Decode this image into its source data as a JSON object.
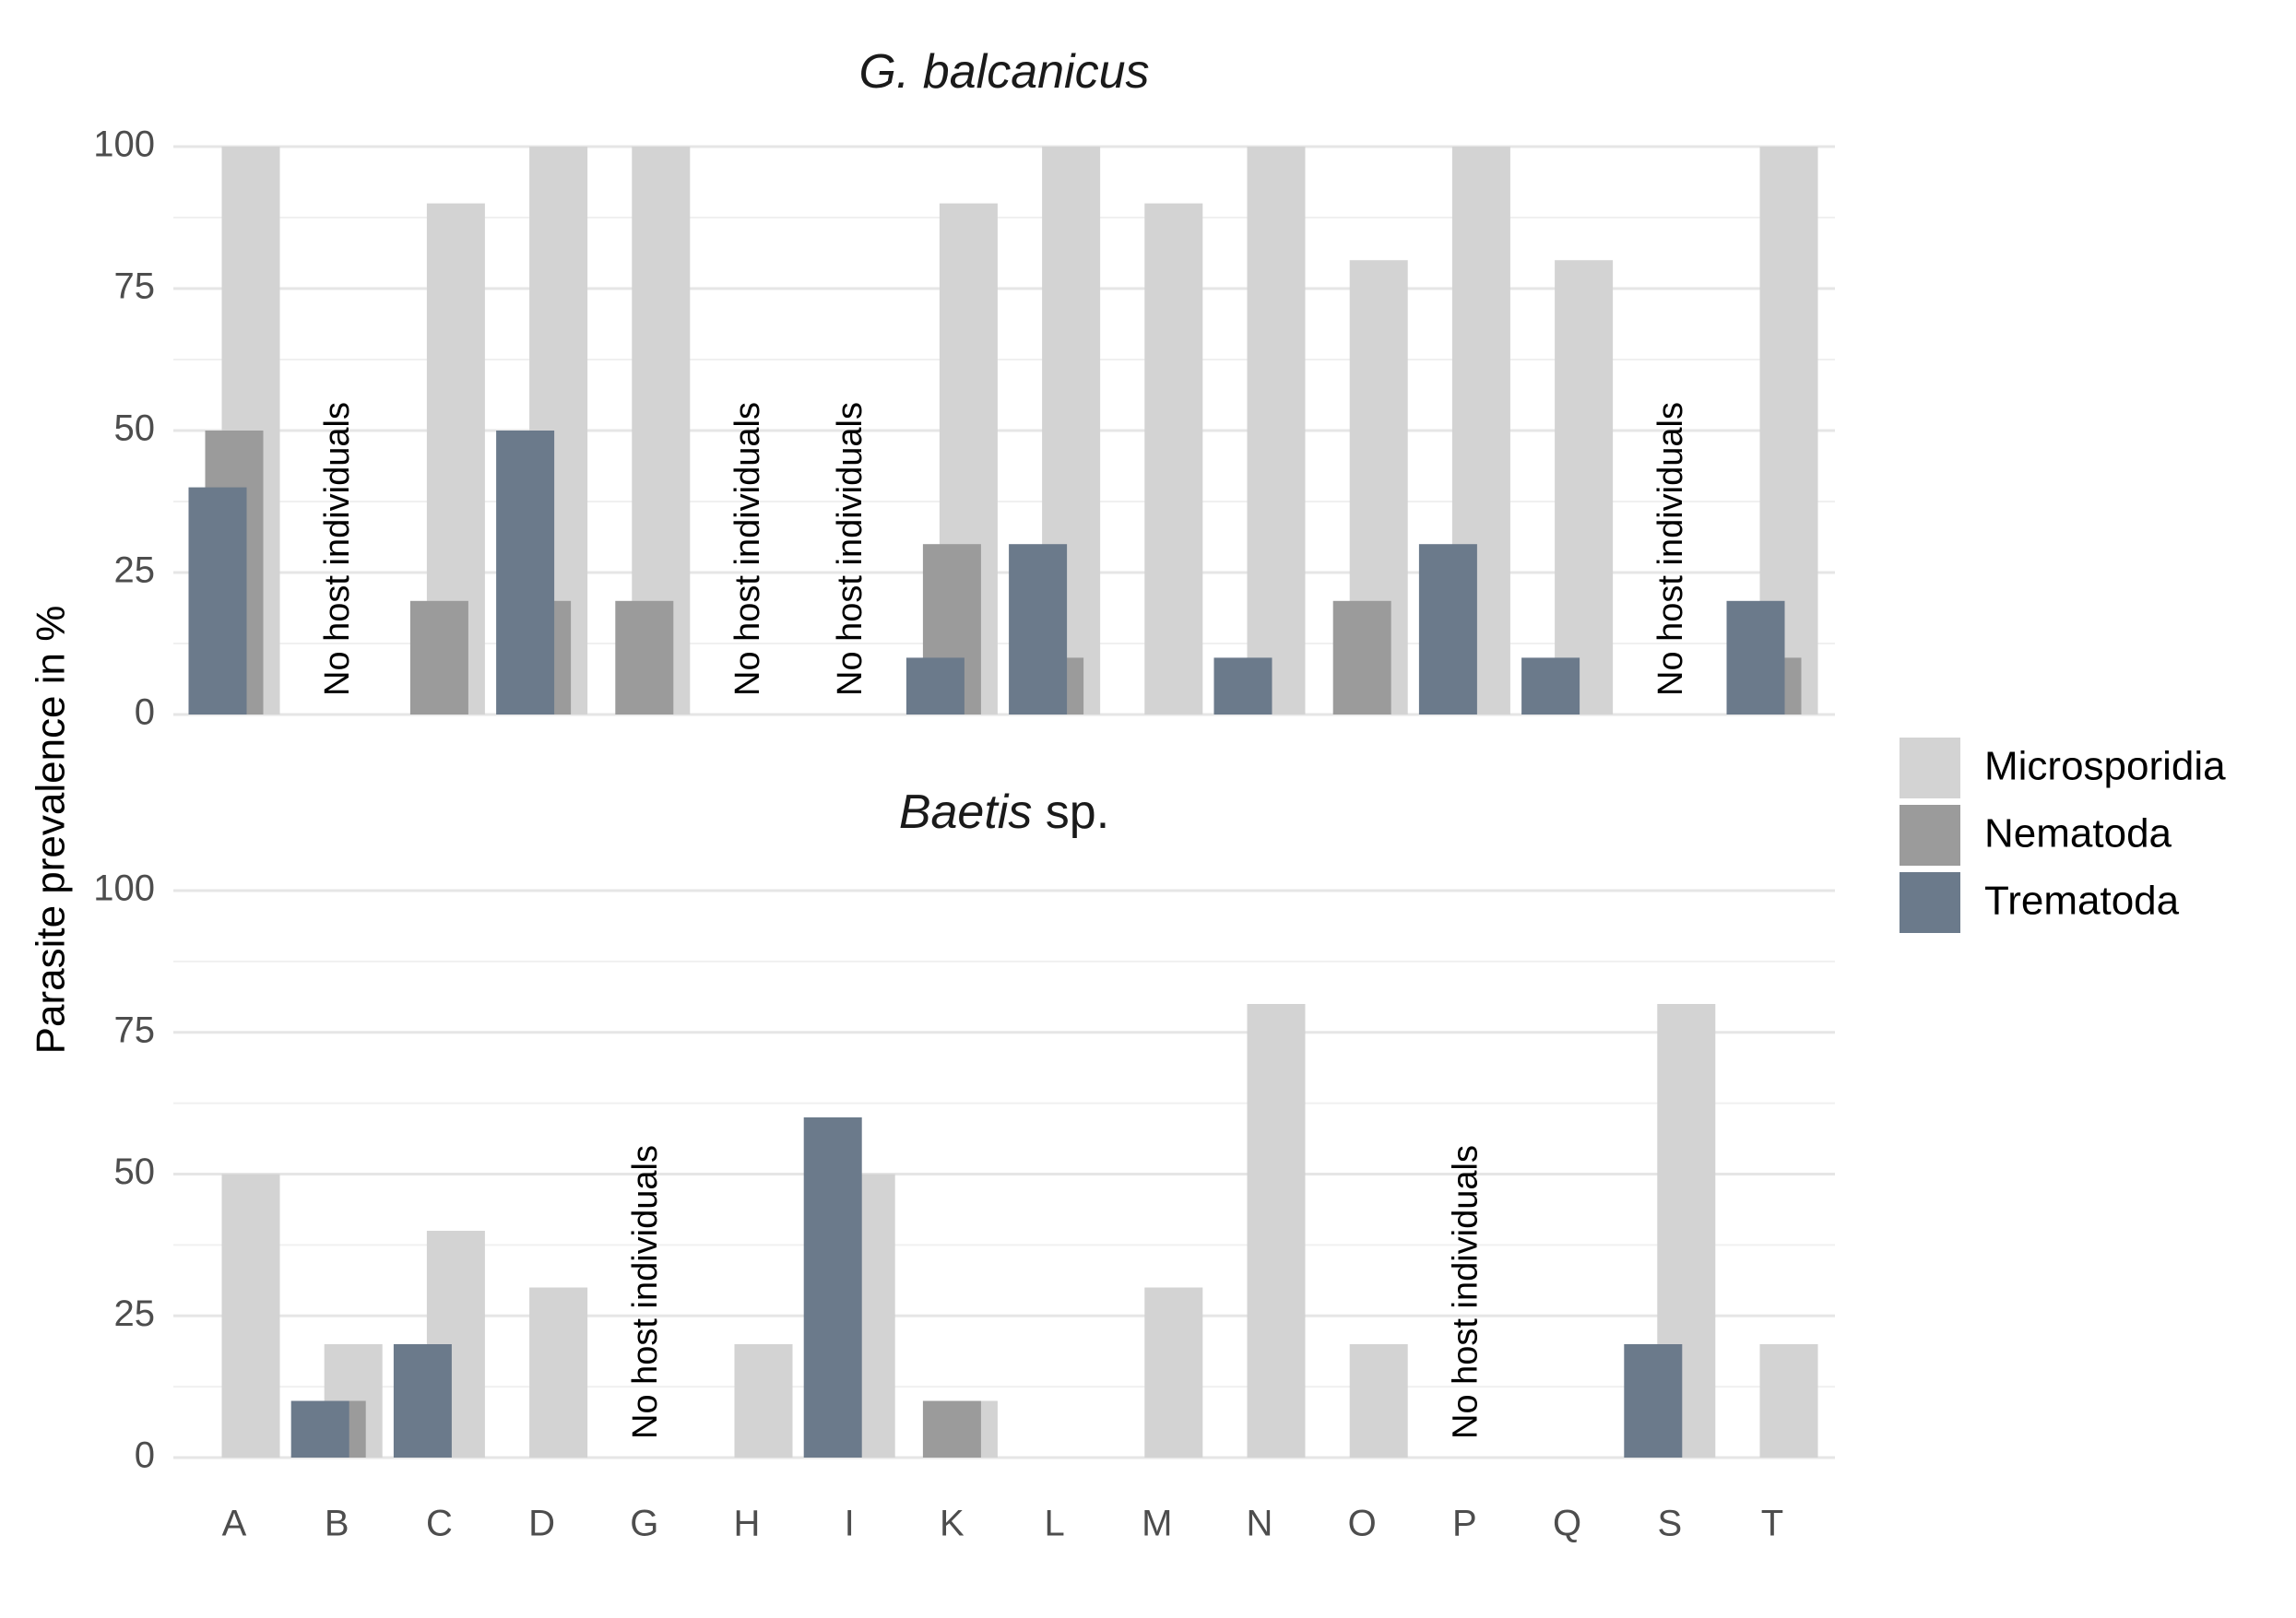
{
  "chart_data": {
    "type": "bar",
    "ylabel": "Parasite prevalence in %",
    "ylim": [
      0,
      100
    ],
    "yticks": [
      "0",
      "25",
      "50",
      "75",
      "100"
    ],
    "grid": true,
    "legend_position": "right",
    "categories": [
      "A",
      "B",
      "C",
      "D",
      "G",
      "H",
      "I",
      "K",
      "L",
      "M",
      "N",
      "O",
      "P",
      "Q",
      "S",
      "T"
    ],
    "colors": {
      "Microsporidia": "#d3d3d3",
      "Nematoda": "#9b9b9b",
      "Trematoda": "#6b7a8b"
    },
    "legend": [
      "Microsporidia",
      "Nematoda",
      "Trematoda"
    ],
    "no_host_text": "No host individuals",
    "panels": [
      {
        "title_italic": "G. balcanicus",
        "title_rest": "",
        "no_host": [
          "B",
          "H",
          "I",
          "S"
        ],
        "series": [
          {
            "name": "Microsporidia",
            "values": [
              100,
              null,
              90,
              100,
              100,
              null,
              null,
              90,
              100,
              90,
              100,
              80,
              100,
              80,
              null,
              100
            ]
          },
          {
            "name": "Nematoda",
            "values": [
              50,
              null,
              20,
              20,
              20,
              null,
              null,
              30,
              10,
              0,
              0,
              20,
              0,
              0,
              null,
              10
            ]
          },
          {
            "name": "Trematoda",
            "values": [
              40,
              null,
              0,
              50,
              0,
              null,
              null,
              10,
              30,
              0,
              10,
              0,
              30,
              10,
              null,
              20
            ]
          }
        ]
      },
      {
        "title_italic": "Baetis",
        "title_rest": " sp.",
        "no_host": [
          "G",
          "P"
        ],
        "series": [
          {
            "name": "Microsporidia",
            "values": [
              50,
              20,
              40,
              30,
              null,
              20,
              50,
              10,
              0,
              30,
              80,
              20,
              null,
              0,
              80,
              20
            ]
          },
          {
            "name": "Nematoda",
            "values": [
              0,
              10,
              0,
              0,
              null,
              0,
              0,
              10,
              0,
              0,
              0,
              0,
              null,
              0,
              0,
              0
            ]
          },
          {
            "name": "Trematoda",
            "values": [
              0,
              10,
              20,
              0,
              null,
              0,
              60,
              0,
              0,
              0,
              0,
              0,
              null,
              0,
              20,
              0
            ]
          }
        ]
      }
    ]
  }
}
